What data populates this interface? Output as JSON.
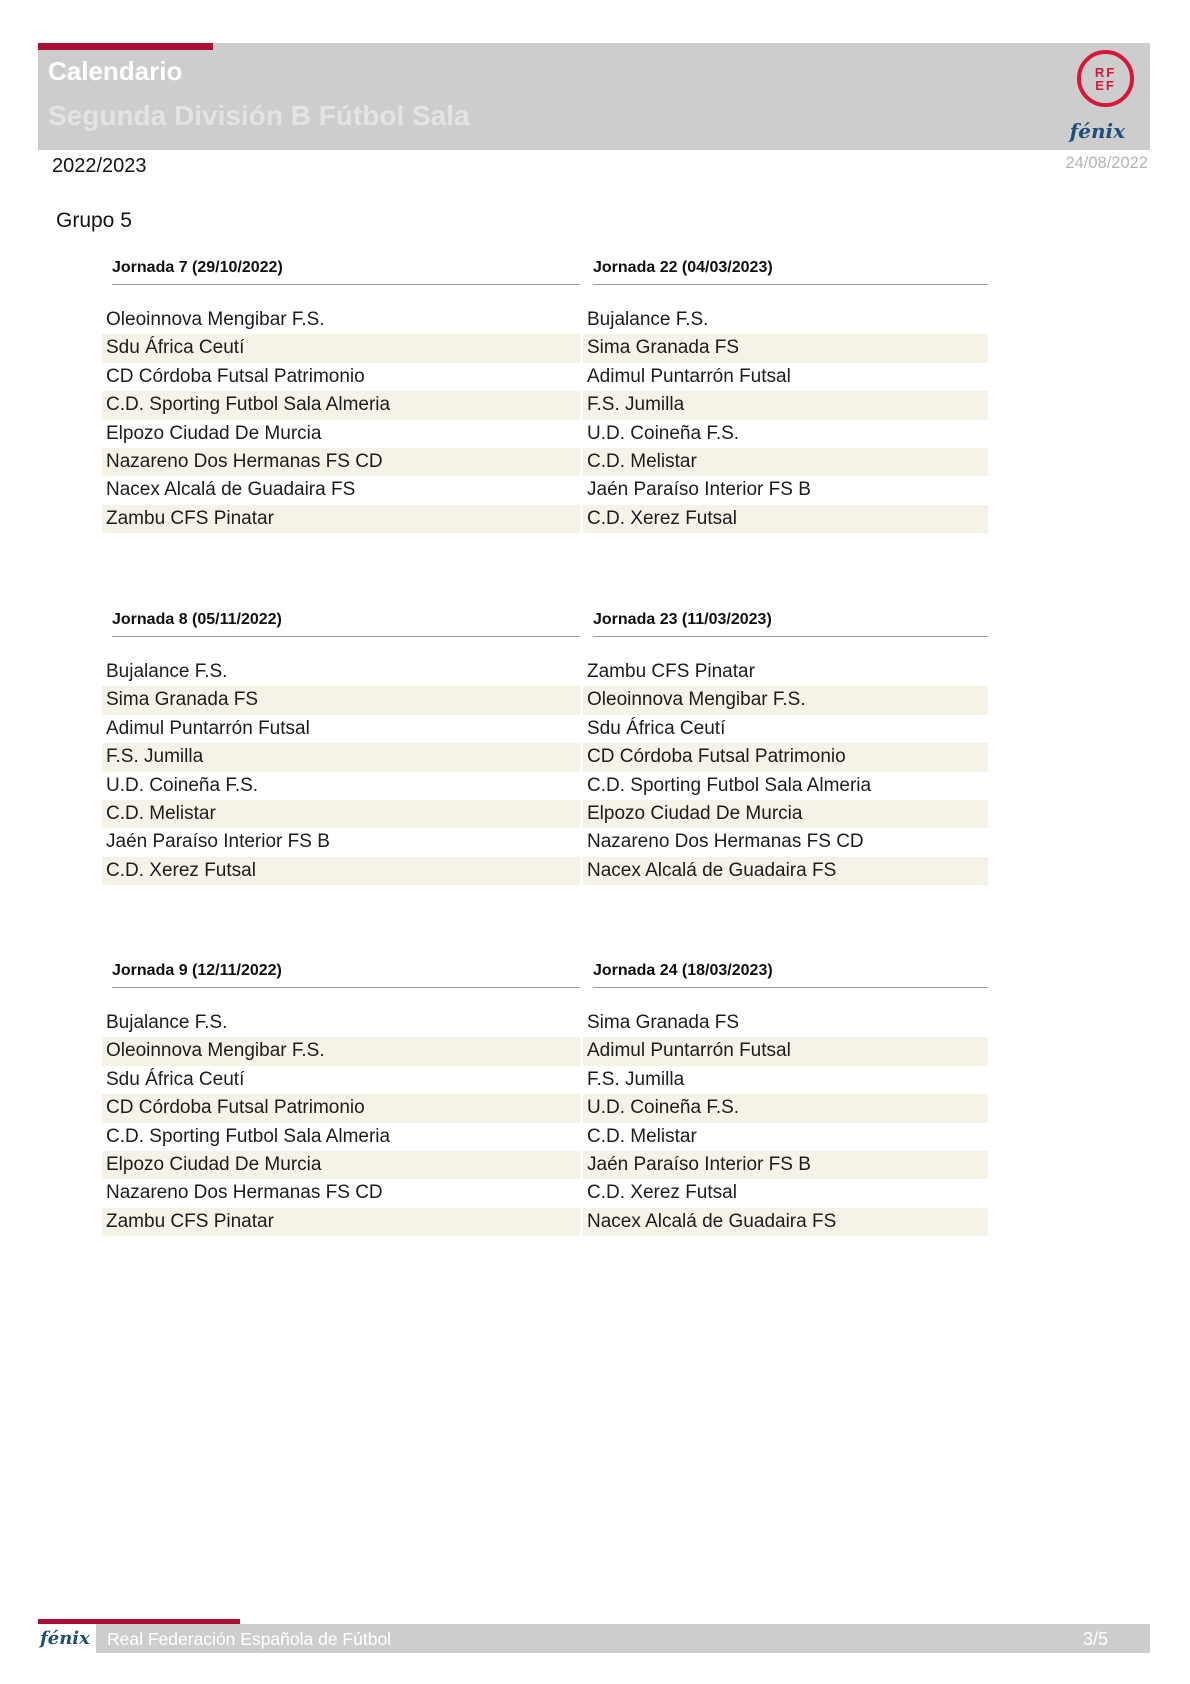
{
  "header": {
    "title": "Calendario",
    "subtitle": "Segunda División B Fútbol Sala",
    "season": "2022/2023",
    "date": "24/08/2022",
    "logo_line1": "RF",
    "logo_line2": "EF",
    "brand": "fénix"
  },
  "group_title": "Grupo 5",
  "sections": [
    {
      "left": {
        "title": "Jornada 7 (29/10/2022)",
        "teams": [
          "Oleoinnova Mengibar F.S.",
          "Sdu África Ceutí",
          "CD Córdoba Futsal Patrimonio",
          "C.D. Sporting Futbol Sala Almeria",
          "Elpozo Ciudad De Murcia",
          "Nazareno Dos Hermanas FS CD",
          "Nacex Alcalá de Guadaira FS",
          "Zambu CFS Pinatar"
        ]
      },
      "right": {
        "title": "Jornada 22 (04/03/2023)",
        "teams": [
          "Bujalance F.S.",
          "Sima Granada FS",
          "Adimul Puntarrón Futsal",
          "F.S. Jumilla",
          "U.D. Coineña F.S.",
          "C.D. Melistar",
          "Jaén Paraíso Interior FS B",
          "C.D. Xerez Futsal"
        ]
      }
    },
    {
      "left": {
        "title": "Jornada 8 (05/11/2022)",
        "teams": [
          "Bujalance F.S.",
          "Sima Granada FS",
          "Adimul Puntarrón Futsal",
          "F.S. Jumilla",
          "U.D. Coineña F.S.",
          "C.D. Melistar",
          "Jaén Paraíso Interior FS B",
          "C.D. Xerez Futsal"
        ]
      },
      "right": {
        "title": "Jornada 23 (11/03/2023)",
        "teams": [
          "Zambu CFS Pinatar",
          "Oleoinnova Mengibar F.S.",
          "Sdu África Ceutí",
          "CD Córdoba Futsal Patrimonio",
          "C.D. Sporting Futbol Sala Almeria",
          "Elpozo Ciudad De Murcia",
          "Nazareno Dos Hermanas FS CD",
          "Nacex Alcalá de Guadaira FS"
        ]
      }
    },
    {
      "left": {
        "title": "Jornada 9 (12/11/2022)",
        "teams": [
          "Bujalance F.S.",
          "Oleoinnova Mengibar F.S.",
          "Sdu África Ceutí",
          "CD Córdoba Futsal Patrimonio",
          "C.D. Sporting Futbol Sala Almeria",
          "Elpozo Ciudad De Murcia",
          "Nazareno Dos Hermanas FS CD",
          "Zambu CFS Pinatar"
        ]
      },
      "right": {
        "title": "Jornada 24 (18/03/2023)",
        "teams": [
          "Sima Granada FS",
          "Adimul Puntarrón Futsal",
          "F.S. Jumilla",
          "U.D. Coineña F.S.",
          "C.D. Melistar",
          "Jaén Paraíso Interior FS B",
          "C.D. Xerez Futsal",
          "Nacex Alcalá de Guadaira FS"
        ]
      }
    }
  ],
  "footer": {
    "brand": "fénix",
    "org": "Real Federación Española de Fútbol",
    "page": "3/5"
  },
  "colors": {
    "accent_red": "#ab0f34",
    "logo_red": "#d6173a",
    "brand_blue": "#1f4e79",
    "bar_gray": "#cdcdcd",
    "stripe_beige": "#f5f2e8"
  }
}
